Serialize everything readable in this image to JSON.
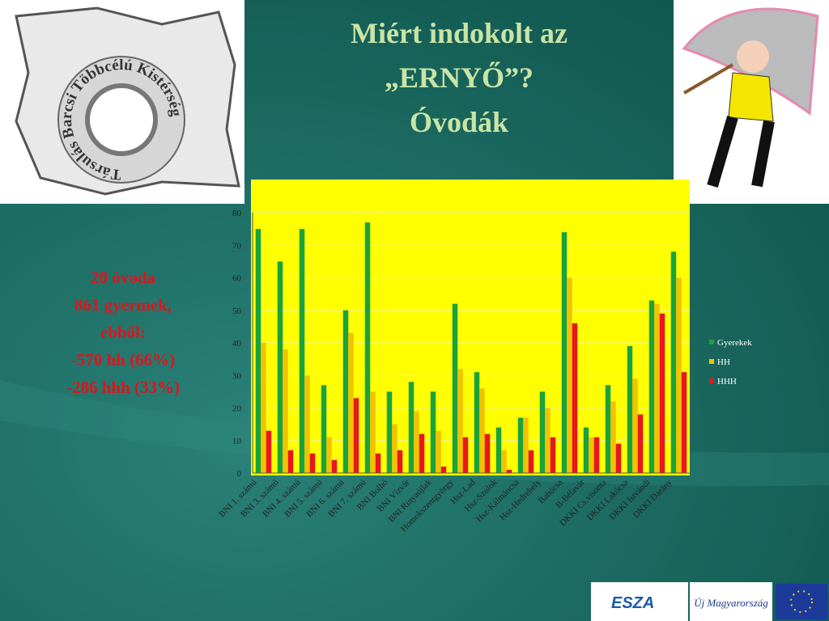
{
  "slide_title": [
    "Miért indokolt az",
    "„ERNYŐ”?",
    "Óvodák"
  ],
  "side_text": [
    "20 óvoda",
    "861 gyermek,",
    "ebből:",
    "-570 hh (66%)",
    "-286 hhh (33%)"
  ],
  "logo_text": "Társulás Barcsi Többcélú Kistérség",
  "footer_logos": [
    "ESZA",
    "Új Magyarország"
  ],
  "chart_data": {
    "type": "bar",
    "categories": [
      "BNI 1. számú",
      "BNI 3. számú",
      "BNI 4. számú",
      "BNI 5. számú",
      "BNI 6. számú",
      "BNI 7. számú",
      "BNI Bolhó",
      "BNI Vízvár",
      "BNI Rinyaújlak",
      "Homokszentgyörgy",
      "Hsz-Lad",
      "Hsz-Szulok",
      "Hsz-Kálmáncsa",
      "Hsz-Hedrehely",
      "Babócsa",
      "B-Bélavár",
      "DKKI Cs.visonta",
      "DKKI Lakócsa",
      "DKKI Istvándi",
      "DKKI Darány"
    ],
    "series": [
      {
        "name": "Gyerekek",
        "color": "#1aa33c",
        "values": [
          75,
          65,
          75,
          27,
          50,
          77,
          25,
          28,
          25,
          52,
          31,
          14,
          17,
          25,
          74,
          14,
          27,
          39,
          53,
          68
        ]
      },
      {
        "name": "HH",
        "color": "#f2c200",
        "values": [
          40,
          38,
          30,
          11,
          43,
          25,
          15,
          19,
          13,
          32,
          26,
          7,
          17,
          20,
          60,
          11,
          22,
          29,
          52,
          60
        ]
      },
      {
        "name": "HHH",
        "color": "#e8161e",
        "values": [
          13,
          7,
          6,
          4,
          23,
          6,
          7,
          12,
          2,
          11,
          12,
          1,
          7,
          11,
          46,
          11,
          9,
          18,
          49,
          31
        ]
      }
    ],
    "ylim": [
      0,
      80
    ],
    "yticks": [
      0,
      10,
      20,
      30,
      40,
      50,
      60,
      70,
      80
    ],
    "grid": true,
    "legend": "right"
  }
}
